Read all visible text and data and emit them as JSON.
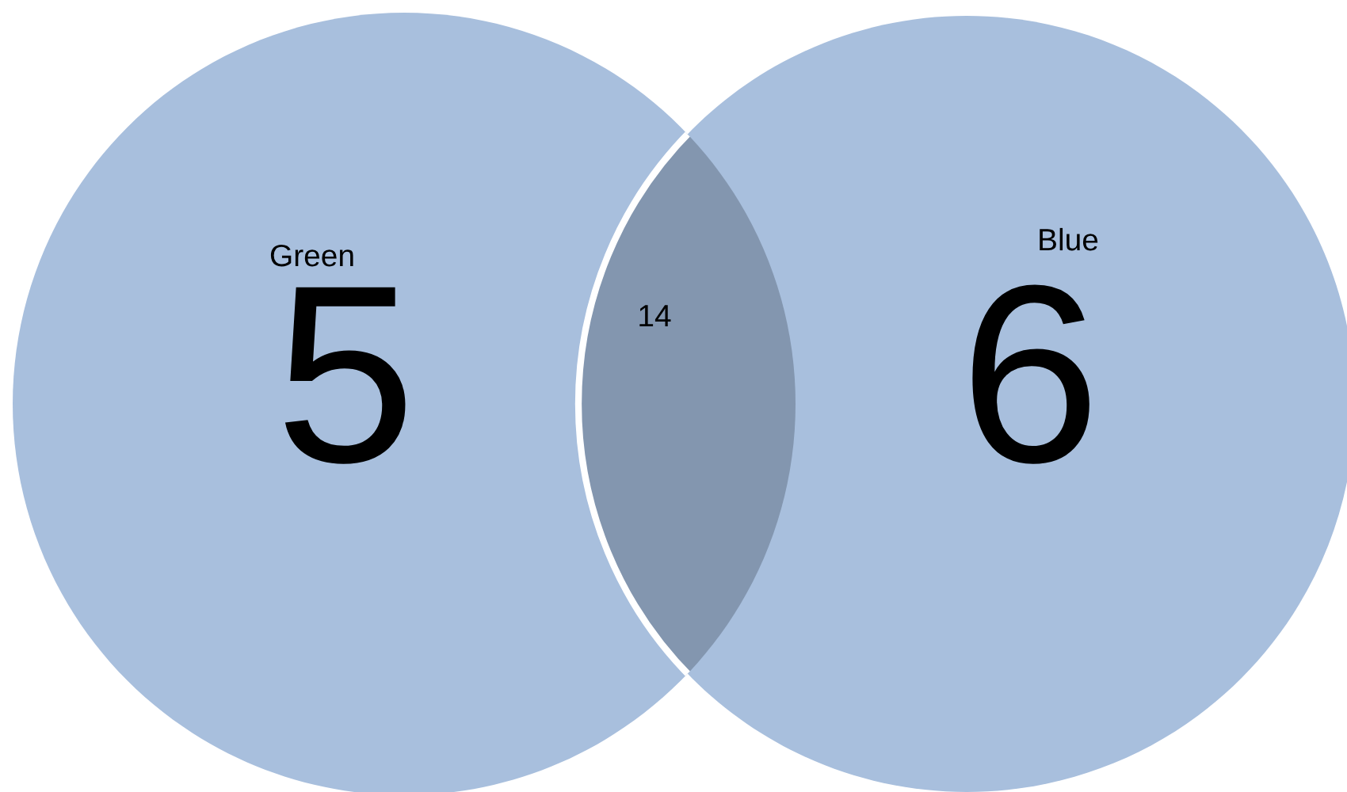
{
  "chart_data": {
    "type": "other",
    "categories": [
      "Green",
      "Blue"
    ],
    "values": [
      5,
      6
    ],
    "data_labels": true,
    "colors": [
      "#a8bfdd",
      "#a8bfdd"
    ],
    "annotations": [
      "14"
    ]
  }
}
